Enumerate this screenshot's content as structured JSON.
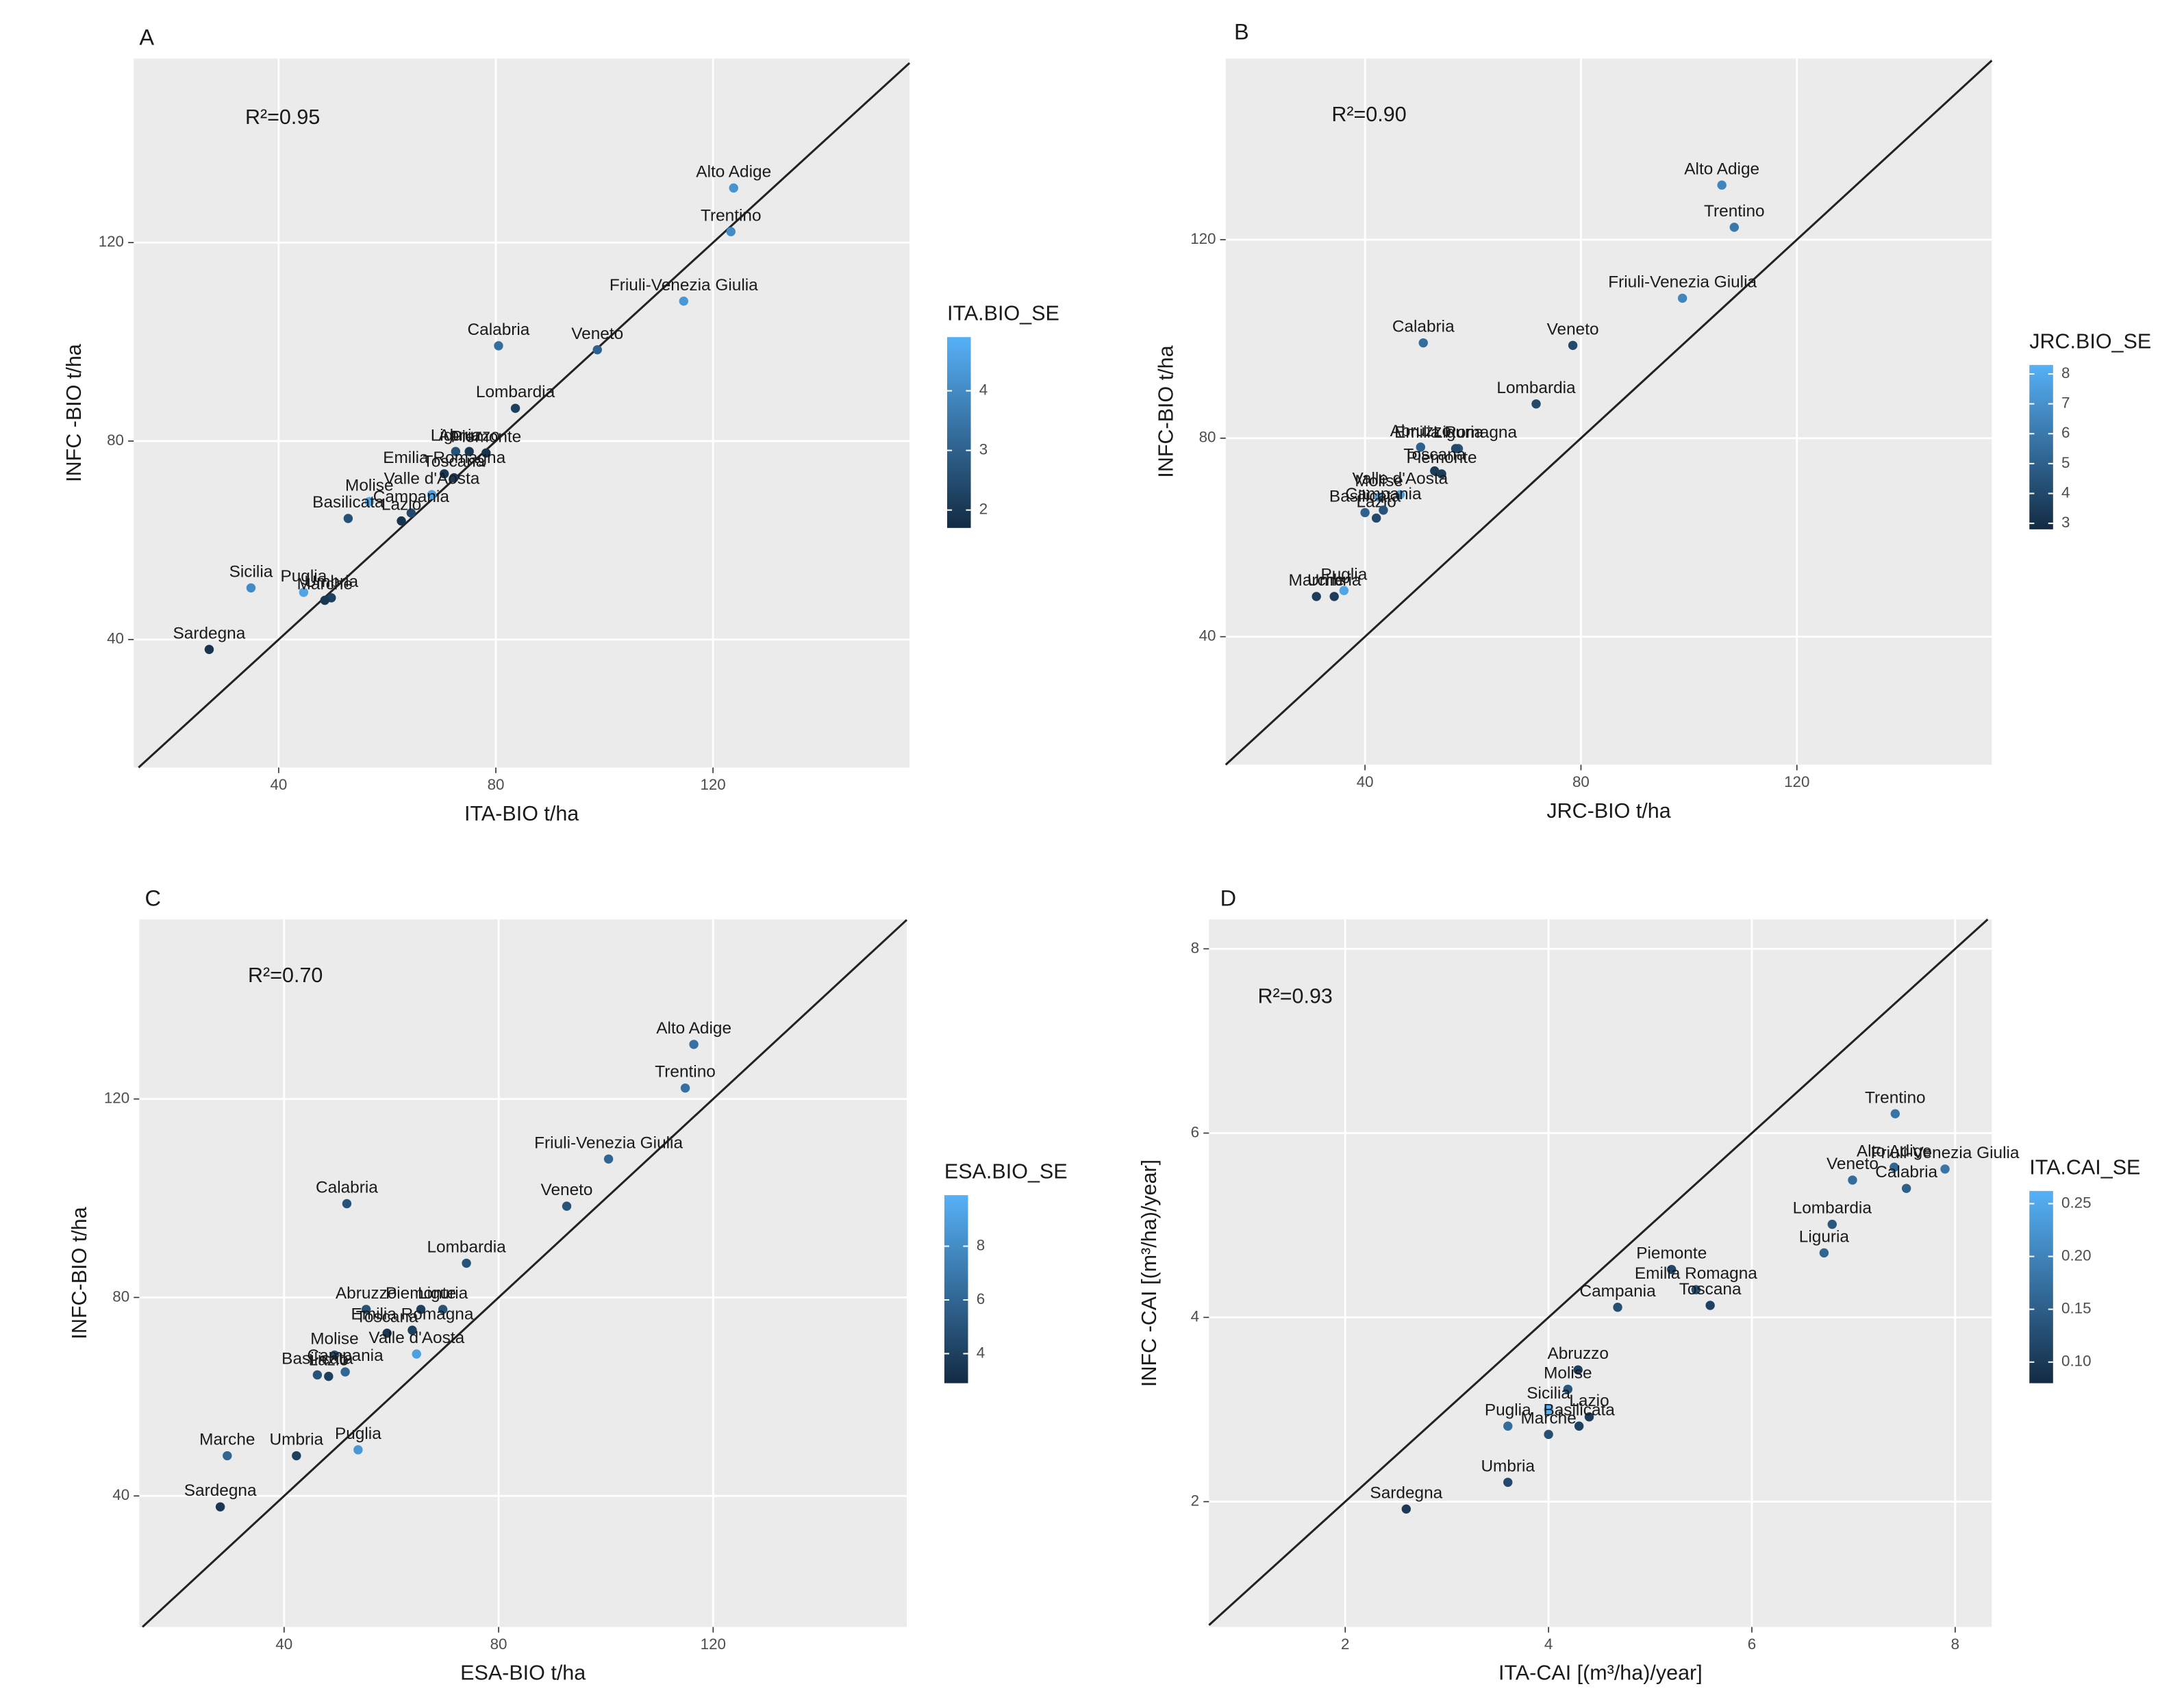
{
  "chart_data": [
    {
      "type": "scatter",
      "panel": "A",
      "annotation": "R²=0.95",
      "x_label": "ITA-BIO t/ha",
      "y_label": "INFC -BIO t/ha",
      "colorbar_title": "ITA.BIO_SE",
      "labels": [
        "Alto Adige",
        "Trentino",
        "Friuli-Venezia Giulia",
        "Calabria",
        "Veneto",
        "Lombardia",
        "Liguria",
        "Abruzzo",
        "Piemonte",
        "Emilia Romagna",
        "Toscana",
        "Valle d'Aosta",
        "Molise",
        "Campania",
        "Basilicata",
        "Lazio",
        "Puglia",
        "Sicilia",
        "Umbria",
        "Marche",
        "Sardegna"
      ],
      "x": [
        123.8,
        123.3,
        114.6,
        80.5,
        98.7,
        83.6,
        72.6,
        75.1,
        78.2,
        70.5,
        72.3,
        68.2,
        56.7,
        64.4,
        52.8,
        62.6,
        44.6,
        34.9,
        49.7,
        48.5,
        27.2
      ],
      "values": [
        131,
        122.2,
        108.2,
        99.2,
        98.4,
        86.6,
        77.9,
        77.9,
        77.6,
        73.4,
        72.6,
        69.2,
        67.8,
        65.5,
        64.4,
        63.9,
        49.5,
        50.4,
        48.4,
        47.9,
        38
      ],
      "color_values": [
        4.2,
        4.0,
        4.3,
        3.3,
        3.0,
        2.2,
        2.6,
        2.0,
        1.9,
        2.0,
        2.0,
        4.5,
        4.7,
        2.4,
        2.6,
        1.9,
        4.6,
        4.0,
        2.2,
        2.0,
        1.9
      ],
      "xlim": [
        13.3,
        156.2
      ],
      "ylim": [
        14.2,
        157.1
      ],
      "xticks": [
        40,
        80,
        120
      ],
      "yticks": [
        40,
        80,
        120
      ],
      "clim": [
        1.7,
        4.9
      ],
      "cticks": [
        2,
        3,
        4
      ],
      "color_low": "#132B43",
      "color_high": "#56B1F7",
      "grid": true,
      "identity_line": true
    },
    {
      "type": "scatter",
      "panel": "B",
      "annotation": "R²=0.90",
      "x_label": "JRC-BIO t/ha",
      "y_label": "INFC-BIO t/ha",
      "colorbar_title": "JRC.BIO_SE",
      "labels": [
        "Alto Adige",
        "Trentino",
        "Friuli-Venezia Giulia",
        "Veneto",
        "Calabria",
        "Lombardia",
        "Abruzzo",
        "Liguria",
        "Piemonte",
        "Emilia Romagna",
        "Toscana",
        "Valle d'Aosta",
        "Molise",
        "Basilicata",
        "Lazio",
        "Campania",
        "Puglia",
        "Marche",
        "Umbria"
      ],
      "x": [
        106.1,
        108.4,
        98.8,
        78.5,
        50.8,
        71.7,
        50.3,
        57.3,
        54.2,
        56.8,
        52.9,
        46.5,
        42.6,
        40,
        42.1,
        43.4,
        36.1,
        31,
        34.3
      ],
      "values": [
        131,
        122.5,
        108.2,
        98.7,
        99.2,
        86.9,
        78.2,
        77.9,
        72.8,
        77.9,
        73.4,
        68.6,
        68.1,
        65,
        63.9,
        65.5,
        49.3,
        48.1,
        48.1
      ],
      "color_values": [
        6.5,
        6,
        6.5,
        4,
        5.5,
        4,
        5,
        4.5,
        3.5,
        4,
        3.5,
        7.5,
        7.8,
        5,
        4,
        4.5,
        7.8,
        3.5,
        3.5
      ],
      "xlim": [
        14.2,
        156.1
      ],
      "ylim": [
        14.2,
        156.5
      ],
      "xticks": [
        40,
        80,
        120
      ],
      "yticks": [
        40,
        80,
        120
      ],
      "clim": [
        2.8,
        8.3
      ],
      "cticks": [
        3,
        4,
        5,
        6,
        7,
        8
      ],
      "color_low": "#132B43",
      "color_high": "#56B1F7",
      "grid": true,
      "identity_line": true
    },
    {
      "type": "scatter",
      "panel": "C",
      "annotation": "R²=0.70",
      "x_label": "ESA-BIO t/ha",
      "y_label": "INFC-BIO t/ha",
      "colorbar_title": "ESA.BIO_SE",
      "labels": [
        "Alto Adige",
        "Trentino",
        "Friuli-Venezia Giulia",
        "Calabria",
        "Veneto",
        "Lombardia",
        "Piemonte",
        "Liguria",
        "Abruzzo",
        "Emilia Romagna",
        "Toscana",
        "Valle d'Aosta",
        "Molise",
        "Campania",
        "Basilicata",
        "Lazio",
        "Puglia",
        "Umbria",
        "Marche",
        "Sardegna"
      ],
      "x": [
        116.4,
        114.8,
        100.5,
        51.7,
        92.7,
        74,
        65.5,
        69.6,
        55.3,
        63.9,
        59.2,
        64.7,
        49.4,
        51.4,
        46.2,
        48.3,
        53.8,
        42.3,
        29.4,
        28.1
      ],
      "values": [
        131,
        122.2,
        107.9,
        98.9,
        98.4,
        86.9,
        77.6,
        77.6,
        77.6,
        73.4,
        72.8,
        68.6,
        68.4,
        65,
        64.4,
        64.1,
        49.3,
        48.1,
        48.1,
        37.8
      ],
      "color_values": [
        6.5,
        6.5,
        6,
        5,
        5,
        5,
        4,
        5,
        5,
        4,
        3.5,
        9,
        5,
        6,
        5,
        4,
        8.5,
        4,
        6,
        3.5
      ],
      "xlim": [
        13.0,
        156.1
      ],
      "ylim": [
        13.6,
        156.2
      ],
      "xticks": [
        40,
        80,
        120
      ],
      "yticks": [
        40,
        80,
        120
      ],
      "clim": [
        2.9,
        9.9
      ],
      "cticks": [
        4,
        6,
        8
      ],
      "color_low": "#132B43",
      "color_high": "#56B1F7",
      "grid": true,
      "identity_line": true
    },
    {
      "type": "scatter",
      "panel": "D",
      "annotation": "R²=0.93",
      "x_label": "ITA-CAI [(m³/ha)/year]",
      "y_label": "INFC -CAI [(m³/ha)/year]",
      "colorbar_title": "ITA.CAI_SE",
      "labels": [
        "Trentino",
        "Alto Adige",
        "Friuli-Venezia Giulia",
        "Calabria",
        "Veneto",
        "Lombardia",
        "Liguria",
        "Piemonte",
        "Emilia Romagna",
        "Toscana",
        "Campania",
        "Abruzzo",
        "Molise",
        "Lazio",
        "Sicilia",
        "Puglia",
        "Basilicata",
        "Marche",
        "Umbria",
        "Sardegna"
      ],
      "x": [
        7.41,
        7.4,
        7.9,
        7.52,
        6.99,
        6.79,
        6.71,
        5.21,
        5.45,
        5.59,
        4.68,
        4.29,
        4.19,
        4.4,
        4.0,
        3.6,
        4.3,
        4.0,
        3.6,
        2.6
      ],
      "values": [
        6.21,
        5.63,
        5.61,
        5.4,
        5.49,
        5.01,
        4.7,
        4.52,
        4.3,
        4.13,
        4.11,
        3.43,
        3.22,
        2.92,
        3.0,
        2.82,
        2.82,
        2.73,
        2.21,
        1.92
      ],
      "color_values": [
        0.18,
        0.16,
        0.18,
        0.15,
        0.17,
        0.14,
        0.16,
        0.12,
        0.13,
        0.11,
        0.13,
        0.11,
        0.14,
        0.1,
        0.26,
        0.17,
        0.11,
        0.13,
        0.12,
        0.1
      ],
      "xlim": [
        0.66,
        8.36
      ],
      "ylim": [
        0.64,
        8.32
      ],
      "xticks": [
        2,
        4,
        6,
        8
      ],
      "yticks": [
        2,
        4,
        6,
        8
      ],
      "clim": [
        0.08,
        0.262
      ],
      "cticks": [
        {
          "value": 0.1,
          "label": "0.10"
        },
        0.15,
        {
          "value": 0.2,
          "label": "0.20"
        },
        0.25
      ],
      "color_low": "#132B43",
      "color_high": "#56B1F7",
      "grid": true,
      "identity_line": true
    }
  ]
}
